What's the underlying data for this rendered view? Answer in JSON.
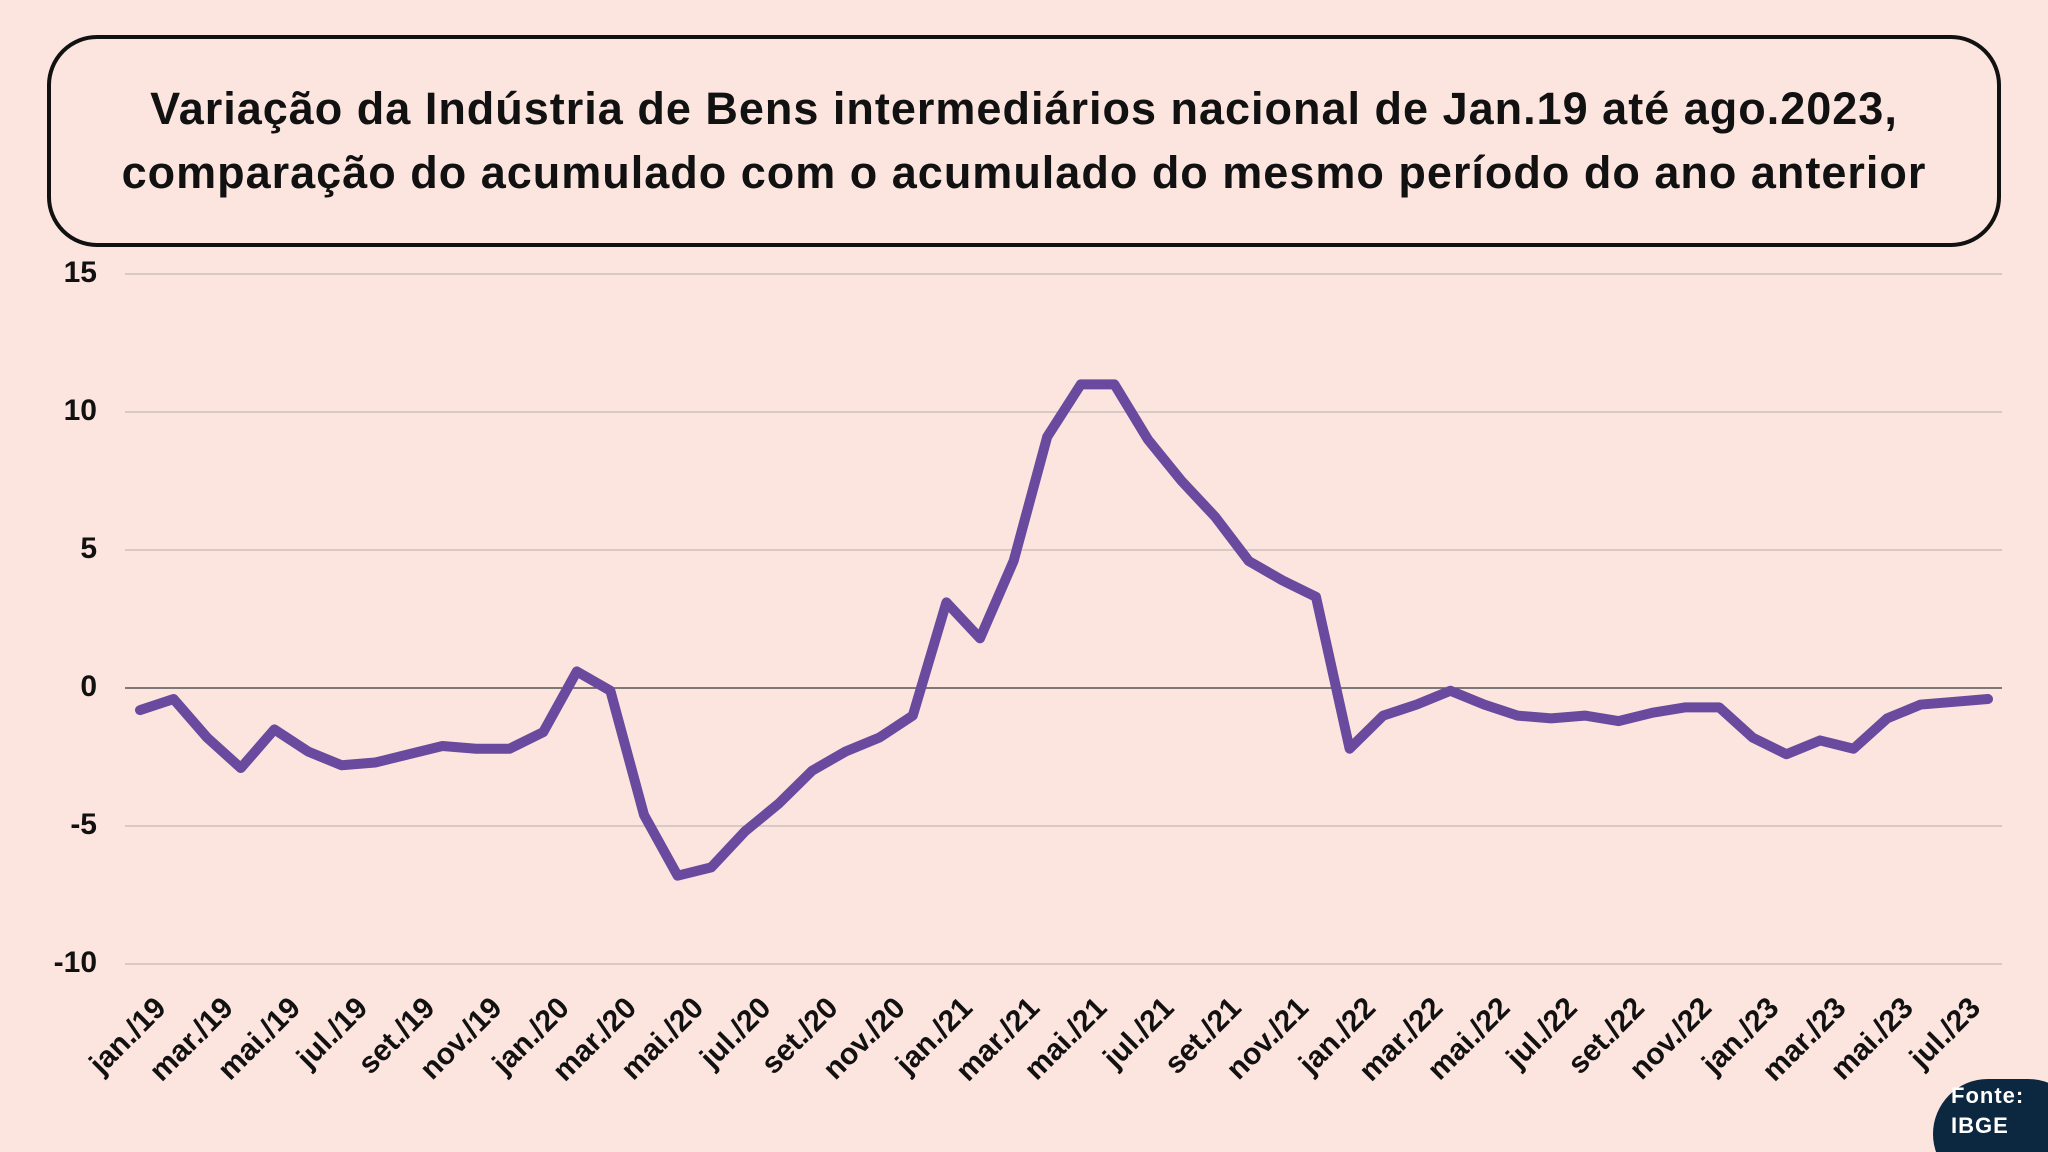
{
  "chart_data": {
    "type": "line",
    "title": "Variação da Indústria de Bens intermediários nacional de Jan.19 até ago.2023, comparação do acumulado com o acumulado do mesmo período do ano anterior",
    "categories": [
      "jan./19",
      null,
      "mar./19",
      null,
      "mai./19",
      null,
      "jul./19",
      null,
      "set./19",
      null,
      "nov./19",
      null,
      "jan./20",
      null,
      "mar./20",
      null,
      "mai./20",
      null,
      "jul./20",
      null,
      "set./20",
      null,
      "nov./20",
      null,
      "jan./21",
      null,
      "mar./21",
      null,
      "mai./21",
      null,
      "jul./21",
      null,
      "set./21",
      null,
      "nov./21",
      null,
      "jan./22",
      null,
      "mar./22",
      null,
      "mai./22",
      null,
      "jul./22",
      null,
      "set./22",
      null,
      "nov./22",
      null,
      "jan./23",
      null,
      "mar./23",
      null,
      "mai./23",
      null,
      "jul./23",
      null
    ],
    "series": [
      {
        "color": "#6a4a9e",
        "values": [
          -0.8,
          -0.4,
          -1.8,
          -2.9,
          -1.5,
          -2.3,
          -2.8,
          -2.7,
          -2.4,
          -2.1,
          -2.2,
          -2.2,
          -1.6,
          0.6,
          -0.1,
          -4.6,
          -6.8,
          -6.5,
          -5.2,
          -4.2,
          -3.0,
          -2.3,
          -1.8,
          -1.0,
          3.1,
          1.8,
          4.6,
          9.1,
          11.0,
          11.0,
          9.0,
          7.5,
          6.2,
          4.6,
          3.9,
          3.3,
          -2.2,
          -1.0,
          -0.6,
          -0.1,
          -0.6,
          -1.0,
          -1.1,
          -1.0,
          -1.2,
          -0.9,
          -0.7,
          -0.7,
          -1.8,
          -2.4,
          -1.9,
          -2.2,
          -1.1,
          -0.6,
          -0.5,
          -0.4
        ]
      }
    ],
    "ylim": [
      -10,
      15
    ],
    "yticks": [
      -10,
      -5,
      0,
      5,
      10,
      15
    ],
    "grid": true,
    "source_label": "Fonte:",
    "source": "IBGE"
  }
}
